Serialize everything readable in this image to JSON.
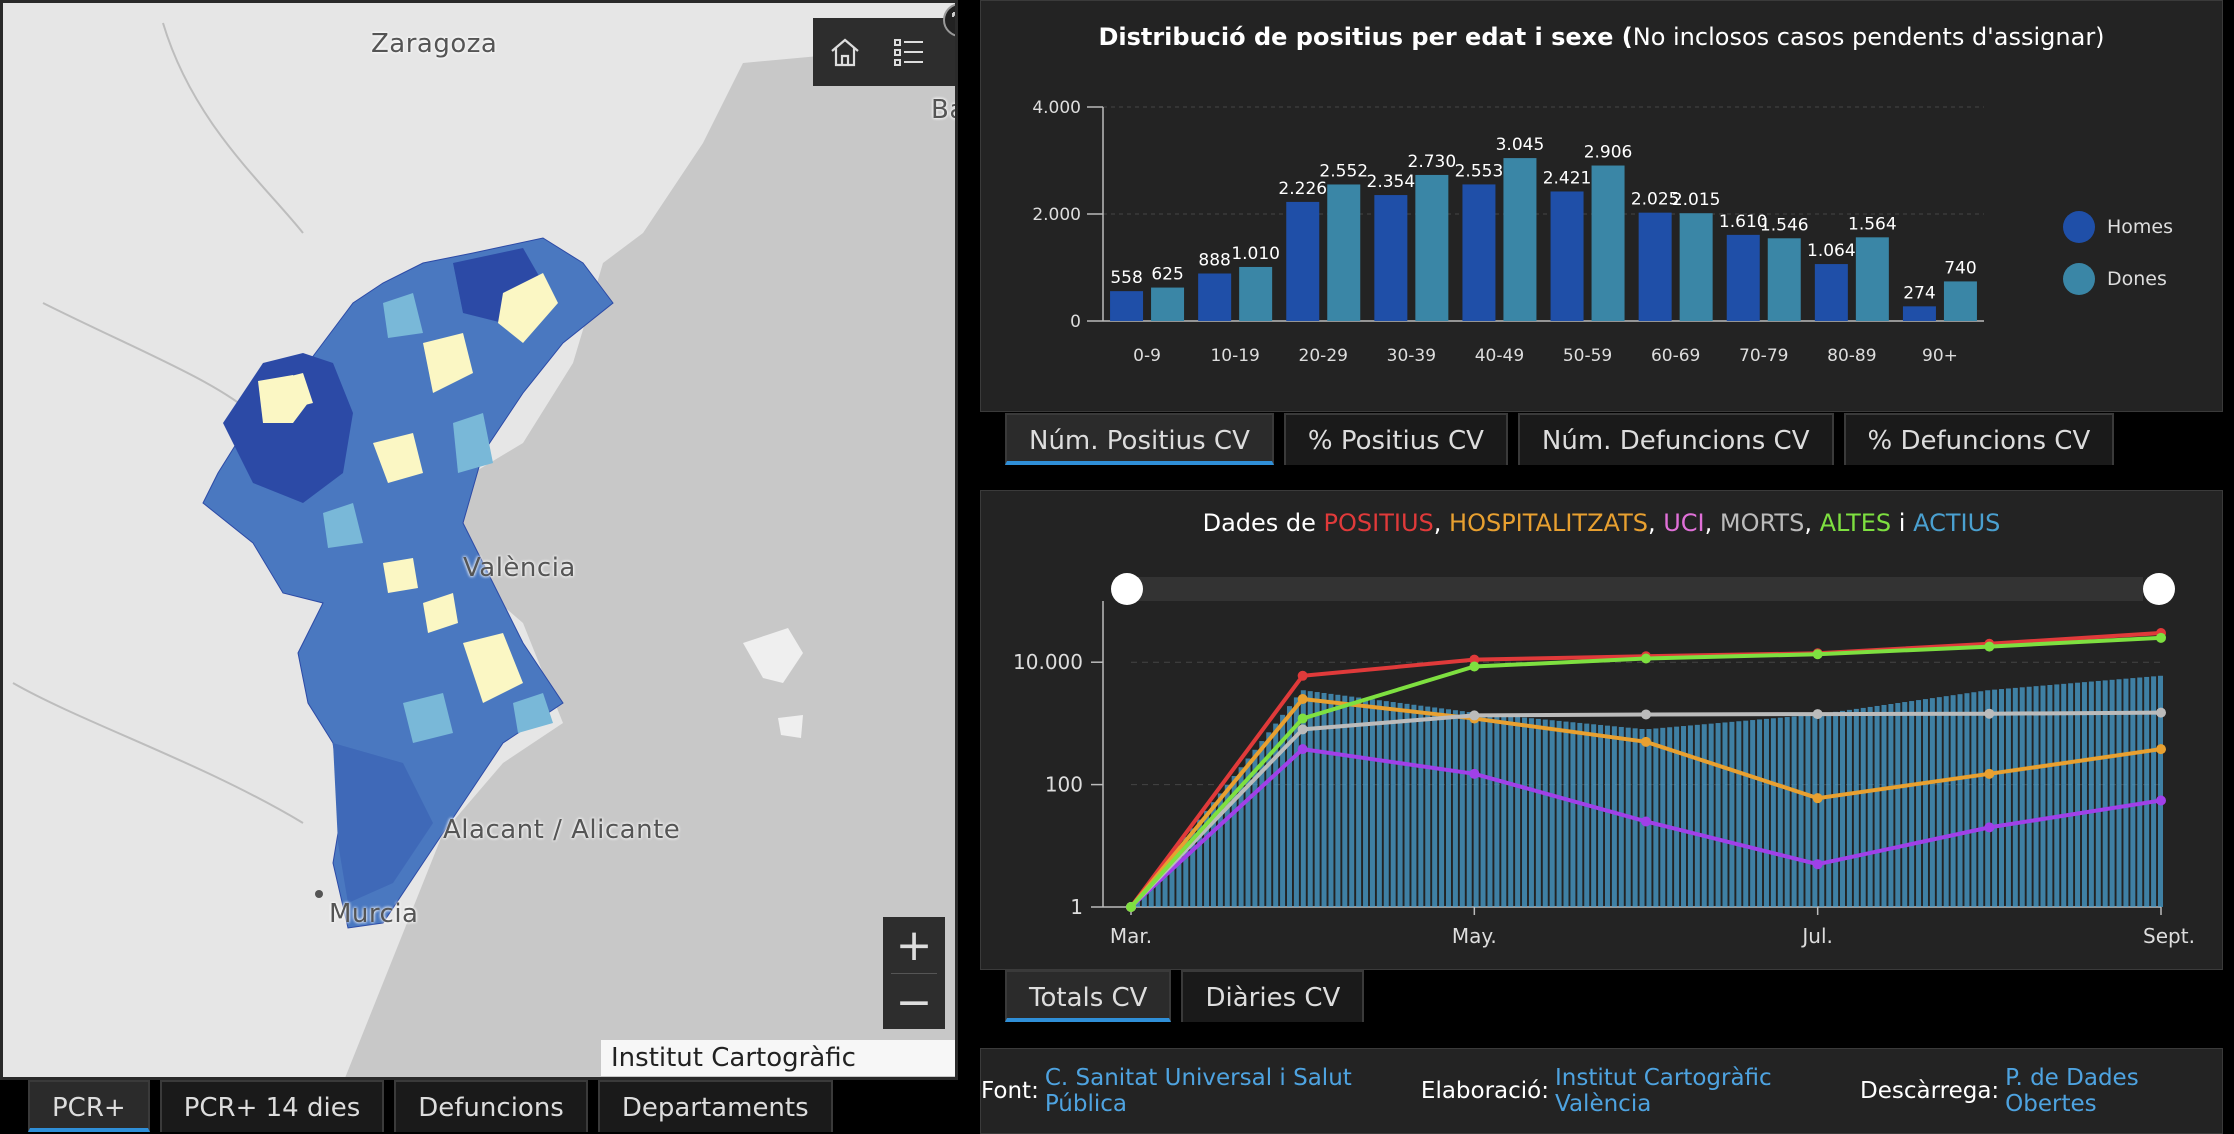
{
  "map": {
    "cities": {
      "zaragoza": "Zaragoza",
      "valencia": "València",
      "alacant": "Alacant / Alicante",
      "murcia": "Murcia",
      "ba": "Ba"
    },
    "attribution": "Institut Cartogràfic València",
    "tabs": [
      "PCR+",
      "PCR+ 14 dies",
      "Defuncions",
      "Departaments"
    ],
    "active_tab": "PCR+",
    "zoom_in": "+",
    "zoom_out": "−",
    "colors": {
      "dark": "#2c4aa6",
      "mid": "#4a78c0",
      "light": "#79b8d8",
      "pale": "#fbf7c4"
    }
  },
  "age_chart": {
    "title_bold": "Distribució de positius per edat i sexe (",
    "title_rest": "No inclosos casos pendents d'assignar)",
    "tabs": [
      "Núm. Positius CV",
      "% Positius CV",
      "Núm. Defuncions CV",
      "% Defuncions CV"
    ],
    "active_tab": "Núm. Positius CV"
  },
  "timeline_chart": {
    "title": {
      "prefix": "Dades de ",
      "positius": "POSITIUS",
      "hosp": "HOSPITALITZATS",
      "uci": "UCI",
      "morts": "MORTS",
      "altes": "ALTES",
      "i": "i",
      "actius": "ACTIUS"
    },
    "tabs": [
      "Totals CV",
      "Diàries CV"
    ],
    "active_tab": "Totals CV"
  },
  "footer": {
    "font_label": "Font:",
    "font_link": "C. Sanitat Universal i Salut Pública",
    "elab_label": "Elaboració:",
    "elab_link": "Institut Cartogràfic València",
    "desc_label": "Descàrrega:",
    "desc_link": "P. de Dades Obertes"
  },
  "chart_data": [
    {
      "type": "bar",
      "title": "Distribució de positius per edat i sexe (No inclosos casos pendents d'assignar)",
      "categories": [
        "0-9",
        "10-19",
        "20-29",
        "30-39",
        "40-49",
        "50-59",
        "60-69",
        "70-79",
        "80-89",
        "90+"
      ],
      "series": [
        {
          "name": "Homes",
          "color": "#1f4fa8",
          "values": [
            558,
            888,
            2226,
            2354,
            2553,
            2421,
            2025,
            1610,
            1064,
            274
          ],
          "labels": [
            "558",
            "888",
            "2.226",
            "2.354",
            "2.553",
            "2.421",
            "2.025",
            "1.610",
            "1.064",
            "274"
          ]
        },
        {
          "name": "Dones",
          "color": "#3a86a6",
          "values": [
            625,
            1010,
            2552,
            2730,
            3045,
            2906,
            2015,
            1546,
            1564,
            740
          ],
          "labels": [
            "625",
            "1.010",
            "2.552",
            "2.730",
            "3.045",
            "2.906",
            "2.015",
            "1.546",
            "1.564",
            "740"
          ]
        }
      ],
      "ylim": [
        0,
        4000
      ],
      "yticks": [
        0,
        2000,
        4000
      ],
      "ytick_labels": [
        "0",
        "2.000",
        "4.000"
      ],
      "legend": "right"
    },
    {
      "type": "line",
      "title": "Dades de POSITIUS, HOSPITALITZATS, UCI, MORTS, ALTES i ACTIUS",
      "yscale": "log",
      "ylim": [
        1,
        100000
      ],
      "yticks": [
        1,
        100,
        10000
      ],
      "ytick_labels": [
        "1",
        "100",
        "10.000"
      ],
      "xticks": [
        "Mar.",
        "May.",
        "Jul.",
        "Sept."
      ],
      "series": [
        {
          "name": "POSITIUS",
          "color": "#e03a3a",
          "x": [
            "Mar.",
            "Apr.",
            "May.",
            "Jun.",
            "Jul.",
            "Aug.",
            "Sept."
          ],
          "values": [
            1,
            6000,
            11000,
            12500,
            14000,
            20000,
            30000
          ]
        },
        {
          "name": "HOSPITALITZATS",
          "color": "#e8a030",
          "x": [
            "Mar.",
            "Apr.",
            "May.",
            "Jun.",
            "Jul.",
            "Aug.",
            "Sept."
          ],
          "values": [
            1,
            2500,
            1200,
            500,
            60,
            150,
            380
          ]
        },
        {
          "name": "UCI",
          "color": "#a040e8",
          "x": [
            "Mar.",
            "Apr.",
            "May.",
            "Jun.",
            "Jul.",
            "Aug.",
            "Sept."
          ],
          "values": [
            1,
            380,
            150,
            25,
            5,
            20,
            55
          ]
        },
        {
          "name": "MORTS",
          "color": "#bbbbbb",
          "x": [
            "Mar.",
            "Apr.",
            "May.",
            "Jun.",
            "Jul.",
            "Aug.",
            "Sept."
          ],
          "values": [
            1,
            800,
            1350,
            1400,
            1420,
            1440,
            1500
          ]
        },
        {
          "name": "ALTES",
          "color": "#7ee040",
          "x": [
            "Mar.",
            "Apr.",
            "May.",
            "Jun.",
            "Jul.",
            "Aug.",
            "Sept."
          ],
          "values": [
            1,
            1200,
            8500,
            11500,
            13500,
            18000,
            25000
          ]
        },
        {
          "name": "ACTIUS",
          "color": "#4aa0d0",
          "x": [
            "Mar.",
            "Apr.",
            "May.",
            "Jun.",
            "Jul.",
            "Aug.",
            "Sept."
          ],
          "values": [
            1,
            3500,
            1500,
            800,
            1400,
            3500,
            6000
          ]
        }
      ]
    }
  ]
}
